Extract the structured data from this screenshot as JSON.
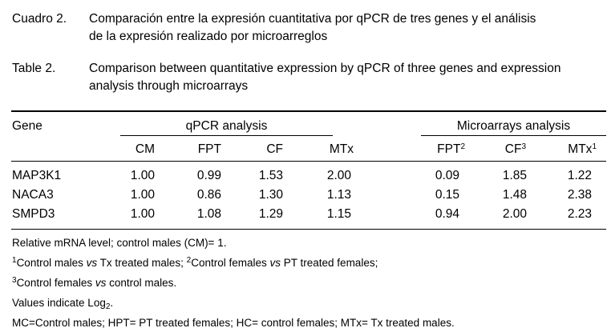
{
  "caption_es": {
    "label": "Cuadro 2.",
    "line1": "Comparación entre la expresión cuantitativa por qPCR de tres genes y el análisis",
    "line2": "de la expresión realizado por microarreglos"
  },
  "caption_en": {
    "label": "Table 2.",
    "line1": "Comparison between quantitative expression by qPCR of three genes and expression",
    "line2": "analysis through microarrays"
  },
  "table": {
    "gene_header": "Gene",
    "qpcr_header": "qPCR analysis",
    "micro_header": "Microarrays analysis",
    "qpcr_cols": [
      "CM",
      "FPT",
      "CF",
      "MTx"
    ],
    "micro_cols": [
      {
        "label": "FPT",
        "sup": "2"
      },
      {
        "label": "CF",
        "sup": "3"
      },
      {
        "label": "MTx",
        "sup": "1"
      }
    ],
    "rows": [
      {
        "gene": "MAP3K1",
        "qpcr": [
          "1.00",
          "0.99",
          "1.53",
          "2.00"
        ],
        "micro": [
          "0.09",
          "1.85",
          "1.22"
        ]
      },
      {
        "gene": "NACA3",
        "qpcr": [
          "1.00",
          "0.86",
          "1.30",
          "1.13"
        ],
        "micro": [
          "0.15",
          "1.48",
          "2.38"
        ]
      },
      {
        "gene": "SMPD3",
        "qpcr": [
          "1.00",
          "1.08",
          "1.29",
          "1.15"
        ],
        "micro": [
          "0.94",
          "2.00",
          "2.23"
        ]
      }
    ]
  },
  "notes": {
    "n1": "Relative mRNA level; control males (CM)= 1.",
    "n2_sup1": "1",
    "n2_a": "Control males ",
    "n2_vs1": "vs",
    "n2_b": " Tx treated males; ",
    "n2_sup2": "2",
    "n2_c": "Control females ",
    "n2_vs2": "vs",
    "n2_d": " PT treated females;",
    "n3_sup": "3",
    "n3_a": "Control females ",
    "n3_vs": "vs",
    "n3_b": " control males.",
    "n4_a": "Values indicate Log",
    "n4_sub": "2",
    "n4_b": ".",
    "n5": "MC=Control males; HPT= PT treated females; HC= control females; MTx= Tx treated males."
  }
}
